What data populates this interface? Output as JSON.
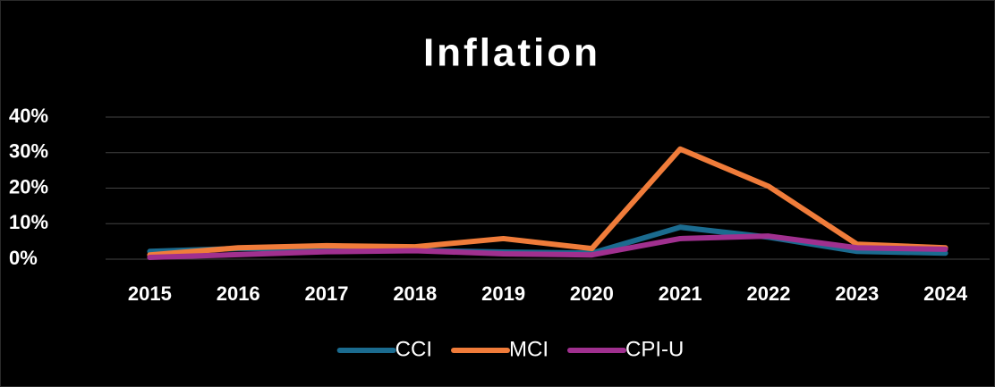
{
  "chart_data": {
    "type": "line",
    "title": "Inflation",
    "categories": [
      "2015",
      "2016",
      "2017",
      "2018",
      "2019",
      "2020",
      "2021",
      "2022",
      "2023",
      "2024"
    ],
    "series": [
      {
        "name": "CCI",
        "color": "#1b6b8f",
        "values": [
          2.2,
          3,
          3,
          2.5,
          2,
          1.7,
          9,
          6.2,
          2.2,
          1.7
        ]
      },
      {
        "name": "MCI",
        "color": "#f07c3a",
        "values": [
          1.2,
          3.2,
          3.8,
          3.5,
          5.8,
          3,
          31,
          20.5,
          4.2,
          3.2
        ]
      },
      {
        "name": "CPI-U",
        "color": "#a0308f",
        "values": [
          0.5,
          1.3,
          2.1,
          2.4,
          1.5,
          1.2,
          5.8,
          6.5,
          3.2,
          2.8
        ]
      }
    ],
    "ylim": [
      0,
      40
    ],
    "yticks": [
      {
        "value": 0,
        "label": "0%"
      },
      {
        "value": 10,
        "label": "10%"
      },
      {
        "value": 20,
        "label": "20%"
      },
      {
        "value": 30,
        "label": "30%"
      },
      {
        "value": 40,
        "label": "40%"
      }
    ],
    "grid": true,
    "legend": "bottom"
  }
}
